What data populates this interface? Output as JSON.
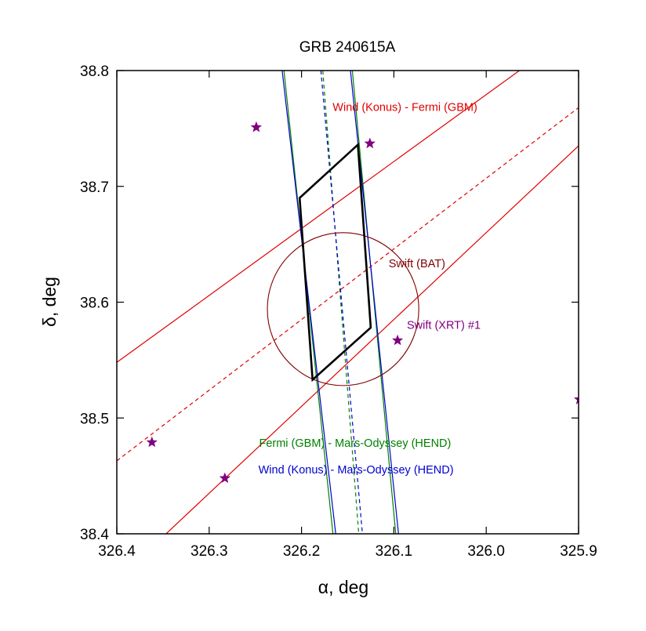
{
  "chart_data": {
    "type": "scatter",
    "title": "GRB 240615A",
    "xlabel": "α, deg",
    "ylabel": "δ, deg",
    "xlim": [
      326.4,
      325.9
    ],
    "ylim": [
      38.4,
      38.8
    ],
    "x_reversed": true,
    "grid": false,
    "xticks": [
      {
        "value": 326.4,
        "label": "326.4"
      },
      {
        "value": 326.3,
        "label": "326.3"
      },
      {
        "value": 326.2,
        "label": "326.2"
      },
      {
        "value": 326.1,
        "label": "326.1"
      },
      {
        "value": 326.0,
        "label": "326.0"
      },
      {
        "value": 325.9,
        "label": "325.9"
      }
    ],
    "yticks": [
      {
        "value": 38.4,
        "label": "38.4"
      },
      {
        "value": 38.5,
        "label": "38.5"
      },
      {
        "value": 38.6,
        "label": "38.6"
      },
      {
        "value": 38.7,
        "label": "38.7"
      },
      {
        "value": 38.8,
        "label": "38.8"
      }
    ],
    "annulus_lines": [
      {
        "group": "konus-gbm",
        "style": "solid",
        "color": "#e00000",
        "points": [
          [
            326.4,
            38.548
          ],
          [
            325.9,
            38.837
          ]
        ]
      },
      {
        "group": "konus-gbm",
        "style": "dashed",
        "color": "#e00000",
        "points": [
          [
            326.4,
            38.463
          ],
          [
            325.9,
            38.768
          ]
        ]
      },
      {
        "group": "konus-gbm",
        "style": "solid",
        "color": "#e00000",
        "points": [
          [
            326.4,
            38.36
          ],
          [
            325.9,
            38.735
          ]
        ]
      },
      {
        "group": "gbm-hend",
        "style": "solid",
        "color": "#008000",
        "points": [
          [
            326.219,
            38.8
          ],
          [
            326.166,
            38.4
          ]
        ]
      },
      {
        "group": "gbm-hend",
        "style": "dashed",
        "color": "#008000",
        "points": [
          [
            326.177,
            38.8
          ],
          [
            326.138,
            38.4
          ]
        ]
      },
      {
        "group": "gbm-hend",
        "style": "solid",
        "color": "#008000",
        "points": [
          [
            326.145,
            38.8
          ],
          [
            326.098,
            38.4
          ]
        ]
      },
      {
        "group": "konus-hend",
        "style": "solid",
        "color": "#0000d0",
        "points": [
          [
            326.221,
            38.8
          ],
          [
            326.163,
            38.4
          ]
        ]
      },
      {
        "group": "konus-hend",
        "style": "dashed",
        "color": "#0000d0",
        "points": [
          [
            326.179,
            38.8
          ],
          [
            326.134,
            38.4
          ]
        ]
      },
      {
        "group": "konus-hend",
        "style": "solid",
        "color": "#0000d0",
        "points": [
          [
            326.147,
            38.8
          ],
          [
            326.095,
            38.4
          ]
        ]
      }
    ],
    "error_box": {
      "color": "#000000",
      "vertices": [
        [
          326.202,
          38.69
        ],
        [
          326.139,
          38.736
        ],
        [
          326.125,
          38.578
        ],
        [
          326.188,
          38.533
        ]
      ]
    },
    "circle": {
      "name": "Swift (BAT)",
      "color": "#800000",
      "center": [
        326.155,
        38.594
      ],
      "radius_x": 0.082,
      "radius_y": 0.066
    },
    "points": [
      {
        "x": 326.249,
        "y": 38.751
      },
      {
        "x": 326.126,
        "y": 38.737
      },
      {
        "x": 326.096,
        "y": 38.567
      },
      {
        "x": 326.362,
        "y": 38.479
      },
      {
        "x": 326.283,
        "y": 38.448
      },
      {
        "x": 325.899,
        "y": 38.516
      }
    ],
    "point_color": "#800080",
    "annotations": [
      {
        "text": "Wind (Konus) - Fermi (GBM)",
        "x": 326.088,
        "y": 38.765,
        "color": "#e00000"
      },
      {
        "text": "Swift (BAT)",
        "x": 326.075,
        "y": 38.63,
        "color": "#800000"
      },
      {
        "text": "Swift (XRT) #1",
        "x": 326.046,
        "y": 38.577,
        "color": "#800080"
      },
      {
        "text": "Fermi (GBM) - Mars-Odyssey (HEND)",
        "x": 326.142,
        "y": 38.475,
        "color": "#008000"
      },
      {
        "text": "Wind (Konus) - Mars-Odyssey (HEND)",
        "x": 326.141,
        "y": 38.452,
        "color": "#0000d0"
      }
    ]
  }
}
